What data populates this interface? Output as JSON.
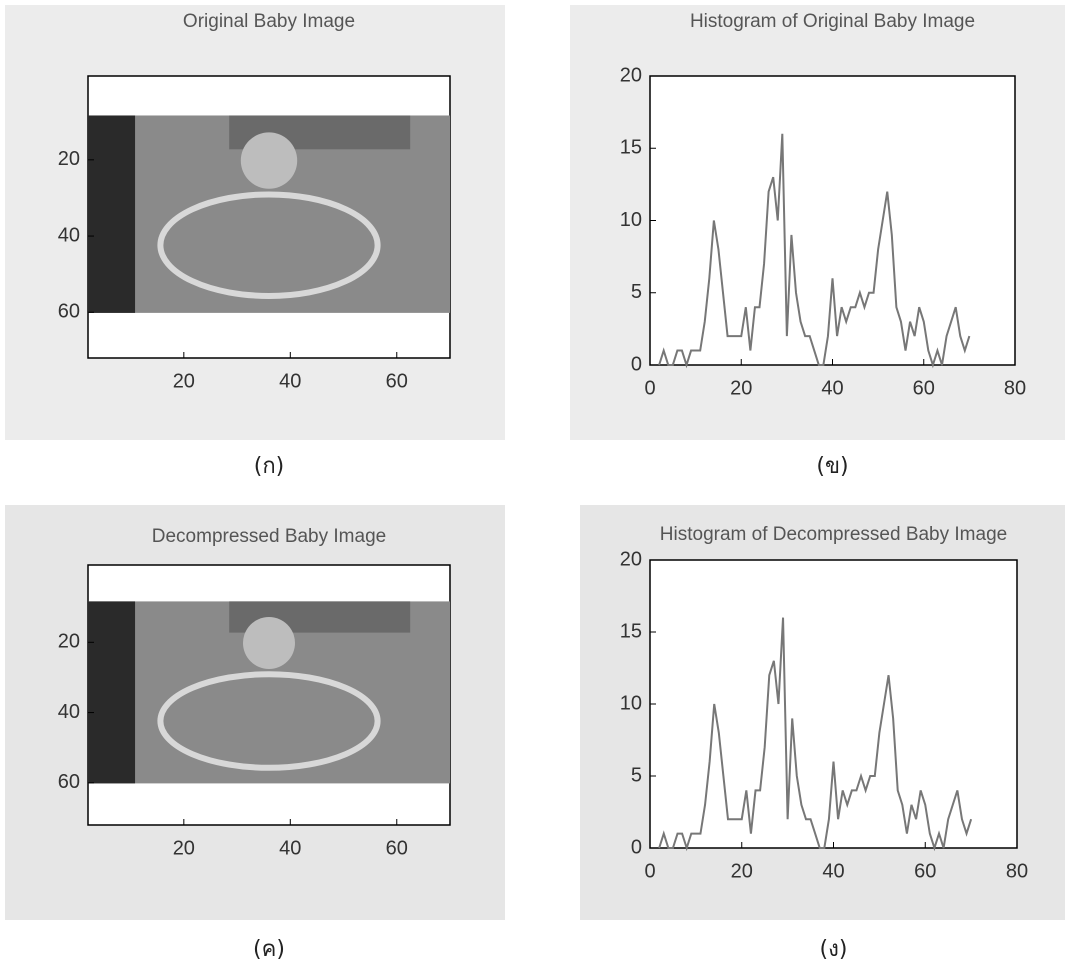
{
  "chart_data": [
    {
      "type": "image",
      "title": "Original Baby Image",
      "caption": "(ก)",
      "xlim": [
        2,
        70
      ],
      "ylim": [
        -2,
        72
      ],
      "xticks": [
        20,
        40,
        60
      ],
      "yticks": [
        20,
        40,
        60
      ]
    },
    {
      "type": "line",
      "title": "Histogram of Original Baby Image",
      "caption": "(ข)",
      "xlim": [
        0,
        80
      ],
      "ylim": [
        0,
        20
      ],
      "xticks": [
        0,
        20,
        40,
        60,
        80
      ],
      "yticks": [
        0,
        5,
        10,
        15,
        20
      ],
      "color": "#777777",
      "x": [
        2,
        3,
        4,
        5,
        6,
        7,
        8,
        9,
        10,
        11,
        12,
        13,
        14,
        15,
        16,
        17,
        18,
        19,
        20,
        21,
        22,
        23,
        24,
        25,
        26,
        27,
        28,
        29,
        30,
        31,
        32,
        33,
        34,
        35,
        36,
        37,
        38,
        39,
        40,
        41,
        42,
        43,
        44,
        45,
        46,
        47,
        48,
        49,
        50,
        51,
        52,
        53,
        54,
        55,
        56,
        57,
        58,
        59,
        60,
        61,
        62,
        63,
        64,
        65,
        66,
        67,
        68,
        69,
        70
      ],
      "values": [
        0,
        1,
        0,
        0,
        1,
        1,
        0,
        1,
        1,
        1,
        3,
        6,
        10,
        8,
        5,
        2,
        2,
        2,
        2,
        4,
        1,
        4,
        4,
        7,
        12,
        13,
        10,
        16,
        2,
        9,
        5,
        3,
        2,
        2,
        1,
        0,
        0,
        2,
        6,
        2,
        4,
        3,
        4,
        4,
        5,
        4,
        5,
        5,
        8,
        10,
        12,
        9,
        4,
        3,
        1,
        3,
        2,
        4,
        3,
        1,
        0,
        1,
        0,
        2,
        3,
        4,
        2,
        1,
        2
      ]
    },
    {
      "type": "image",
      "title": "Decompressed Baby Image",
      "caption": "(ค)",
      "xlim": [
        2,
        70
      ],
      "ylim": [
        -2,
        72
      ],
      "xticks": [
        20,
        40,
        60
      ],
      "yticks": [
        20,
        40,
        60
      ]
    },
    {
      "type": "line",
      "title": "Histogram of Decompressed Baby Image",
      "caption": "(ง)",
      "xlim": [
        0,
        80
      ],
      "ylim": [
        0,
        20
      ],
      "xticks": [
        0,
        20,
        40,
        60,
        80
      ],
      "yticks": [
        0,
        5,
        10,
        15,
        20
      ],
      "color": "#777777",
      "x": [
        2,
        3,
        4,
        5,
        6,
        7,
        8,
        9,
        10,
        11,
        12,
        13,
        14,
        15,
        16,
        17,
        18,
        19,
        20,
        21,
        22,
        23,
        24,
        25,
        26,
        27,
        28,
        29,
        30,
        31,
        32,
        33,
        34,
        35,
        36,
        37,
        38,
        39,
        40,
        41,
        42,
        43,
        44,
        45,
        46,
        47,
        48,
        49,
        50,
        51,
        52,
        53,
        54,
        55,
        56,
        57,
        58,
        59,
        60,
        61,
        62,
        63,
        64,
        65,
        66,
        67,
        68,
        69,
        70
      ],
      "values": [
        0,
        1,
        0,
        0,
        1,
        1,
        0,
        1,
        1,
        1,
        3,
        6,
        10,
        8,
        5,
        2,
        2,
        2,
        2,
        4,
        1,
        4,
        4,
        7,
        12,
        13,
        10,
        16,
        2,
        9,
        5,
        3,
        2,
        2,
        1,
        0,
        0,
        2,
        6,
        2,
        4,
        3,
        4,
        4,
        5,
        4,
        5,
        5,
        8,
        10,
        12,
        9,
        4,
        3,
        1,
        3,
        2,
        4,
        3,
        1,
        0,
        1,
        0,
        2,
        3,
        4,
        2,
        1,
        2
      ]
    }
  ]
}
